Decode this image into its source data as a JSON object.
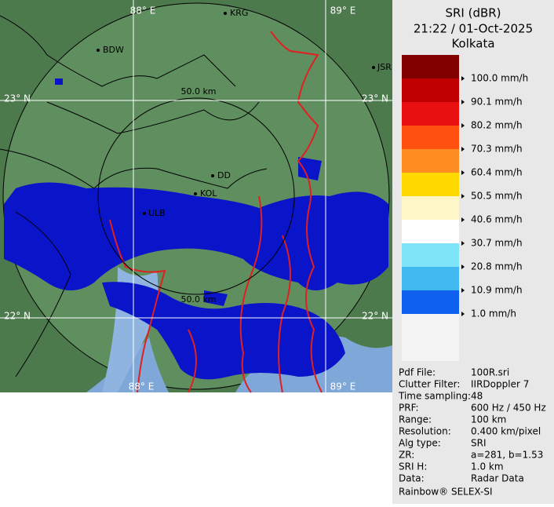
{
  "map": {
    "grid_labels": [
      "88° E",
      "89° E",
      "23° N",
      "23° N",
      "22° N",
      "22° N",
      "88° E",
      "89° E"
    ],
    "cities": [
      "BDW",
      "KRG",
      "JSR",
      "DD",
      "KOL",
      "ULB"
    ],
    "range_labels": [
      "50.0 km",
      "50.0 km"
    ]
  },
  "panel": {
    "title": "SRI (dBR)",
    "time": "21:22 / 01-Oct-2025",
    "site": "Kolkata",
    "legend": [
      "100.0 mm/h",
      "90.1 mm/h",
      "80.2 mm/h",
      "70.3 mm/h",
      "60.4 mm/h",
      "50.5 mm/h",
      "40.6 mm/h",
      "30.7 mm/h",
      "20.8 mm/h",
      "10.9 mm/h",
      "1.0 mm/h"
    ],
    "info": [
      [
        "Pdf File:",
        "100R.sri"
      ],
      [
        "Clutter Filter:",
        "IIRDoppler 7"
      ],
      [
        "Time sampling:",
        "48"
      ],
      [
        "PRF:",
        "600 Hz / 450 Hz"
      ],
      [
        "Range:",
        "100 km"
      ],
      [
        "Resolution:",
        "0.400 km/pixel"
      ],
      [
        "Alg type:",
        "SRI"
      ],
      [
        "ZR:",
        "a=281, b=1.53"
      ],
      [
        "SRI H:",
        "1.0 km"
      ],
      [
        "Data:",
        "Radar Data"
      ]
    ],
    "footer": "Rainbow® SELEX-SI"
  }
}
